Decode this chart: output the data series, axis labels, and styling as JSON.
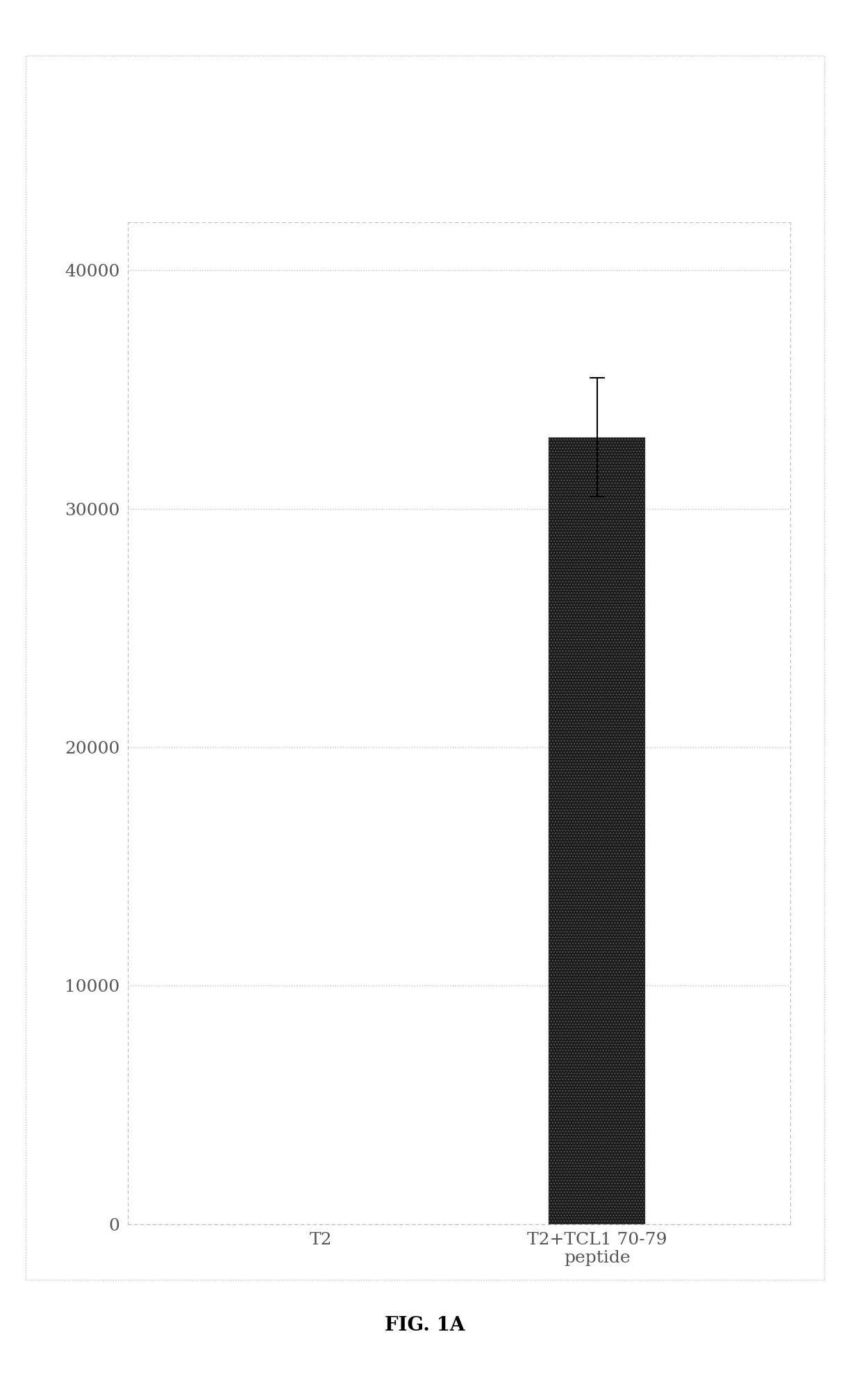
{
  "categories": [
    "T2",
    "T2+TCL1 70-79\npeptide"
  ],
  "values": [
    0,
    33000
  ],
  "error_bars": [
    0,
    2500
  ],
  "bar_color": "#1a1a1a",
  "bar_hatch": "....",
  "ylim": [
    0,
    42000
  ],
  "yticks": [
    0,
    10000,
    20000,
    30000,
    40000
  ],
  "ytick_labels": [
    "0",
    "10000",
    "20000",
    "30000",
    "40000"
  ],
  "grid_color": "#bbbbbb",
  "background_color": "#ffffff",
  "fig_caption": "FIG. 1A",
  "caption_fontsize": 20,
  "tick_fontsize": 18,
  "label_fontsize": 18,
  "bar_width": 0.35,
  "outer_border_color": "#bbbbbb"
}
